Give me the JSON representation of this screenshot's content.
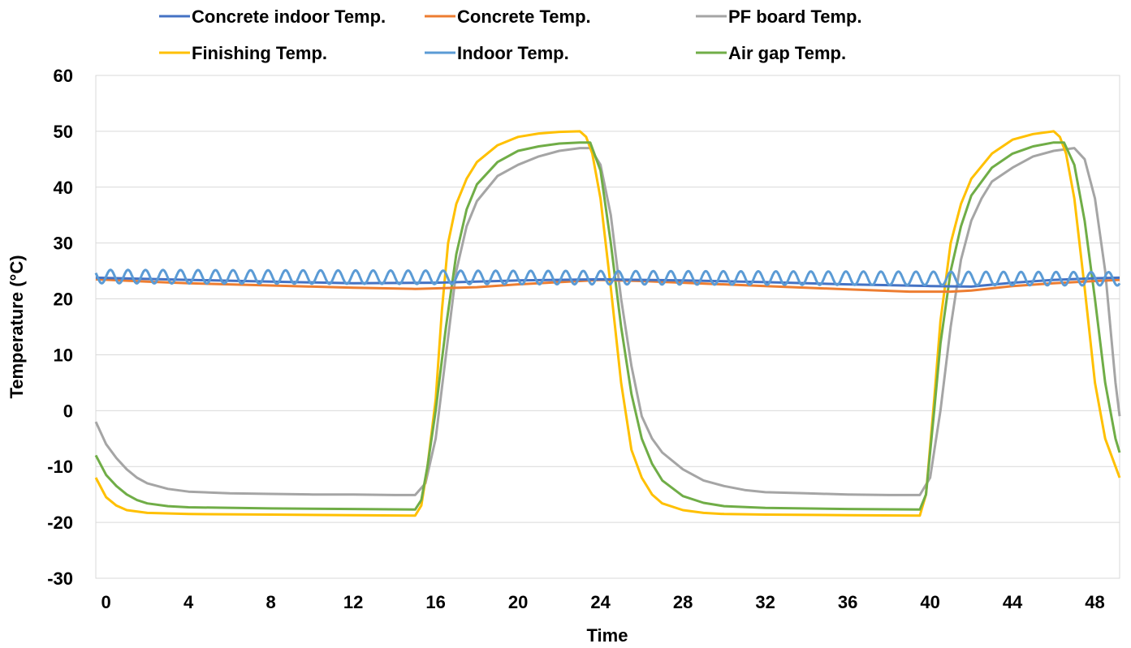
{
  "chart_data": {
    "type": "line",
    "title": "",
    "xlabel": "Time",
    "ylabel": "Temperature (°C)",
    "xlim": [
      -0.5,
      49.2
    ],
    "ylim": [
      -30,
      60
    ],
    "xticks": [
      0,
      4,
      8,
      12,
      16,
      20,
      24,
      28,
      32,
      36,
      40,
      44,
      48
    ],
    "yticks": [
      60,
      50,
      40,
      30,
      20,
      10,
      0,
      -10,
      -20,
      -30
    ],
    "grid": "horizontal",
    "legend_position": "top",
    "series": [
      {
        "name": "Concrete indoor Temp.",
        "color": "#4472C4",
        "points": [
          [
            -0.5,
            23.8
          ],
          [
            4,
            23.4
          ],
          [
            8,
            23.1
          ],
          [
            12,
            22.8
          ],
          [
            16,
            22.9
          ],
          [
            20,
            23.3
          ],
          [
            24,
            23.5
          ],
          [
            28,
            23.3
          ],
          [
            32,
            23.0
          ],
          [
            36,
            22.6
          ],
          [
            40,
            22.3
          ],
          [
            42,
            22.2
          ],
          [
            44,
            22.9
          ],
          [
            46,
            23.4
          ],
          [
            48,
            23.7
          ],
          [
            49.2,
            23.8
          ]
        ]
      },
      {
        "name": "Concrete Temp.",
        "color": "#ED7D31",
        "points": [
          [
            -0.5,
            23.5
          ],
          [
            2,
            23.1
          ],
          [
            4,
            22.8
          ],
          [
            8,
            22.4
          ],
          [
            12,
            22.0
          ],
          [
            15,
            21.8
          ],
          [
            18,
            22.1
          ],
          [
            20,
            22.6
          ],
          [
            24,
            23.4
          ],
          [
            26,
            23.2
          ],
          [
            28,
            22.9
          ],
          [
            32,
            22.3
          ],
          [
            36,
            21.7
          ],
          [
            39,
            21.3
          ],
          [
            41,
            21.3
          ],
          [
            42,
            21.5
          ],
          [
            44,
            22.3
          ],
          [
            46,
            22.8
          ],
          [
            48,
            23.2
          ],
          [
            49.2,
            23.4
          ]
        ]
      },
      {
        "name": "PF board Temp.",
        "color": "#A5A5A5",
        "points": [
          [
            -0.5,
            -2
          ],
          [
            0,
            -6
          ],
          [
            0.5,
            -8.5
          ],
          [
            1,
            -10.5
          ],
          [
            1.5,
            -12
          ],
          [
            2,
            -13
          ],
          [
            3,
            -14
          ],
          [
            4,
            -14.5
          ],
          [
            6,
            -14.8
          ],
          [
            8,
            -14.9
          ],
          [
            10,
            -15
          ],
          [
            12,
            -15
          ],
          [
            14,
            -15.1
          ],
          [
            15,
            -15.1
          ],
          [
            15.5,
            -13
          ],
          [
            16,
            -5
          ],
          [
            16.5,
            10
          ],
          [
            17,
            25
          ],
          [
            17.5,
            33
          ],
          [
            18,
            37.5
          ],
          [
            19,
            42
          ],
          [
            20,
            44
          ],
          [
            21,
            45.5
          ],
          [
            22,
            46.5
          ],
          [
            23,
            47
          ],
          [
            23.5,
            47
          ],
          [
            24,
            44
          ],
          [
            24.5,
            35
          ],
          [
            25,
            20
          ],
          [
            25.5,
            8
          ],
          [
            26,
            -1
          ],
          [
            26.5,
            -5
          ],
          [
            27,
            -7.5
          ],
          [
            28,
            -10.5
          ],
          [
            29,
            -12.5
          ],
          [
            30,
            -13.5
          ],
          [
            31,
            -14.2
          ],
          [
            32,
            -14.6
          ],
          [
            34,
            -14.8
          ],
          [
            36,
            -15
          ],
          [
            38,
            -15.1
          ],
          [
            39.5,
            -15.1
          ],
          [
            40,
            -12
          ],
          [
            40.5,
            0
          ],
          [
            41,
            15
          ],
          [
            41.5,
            27
          ],
          [
            42,
            34
          ],
          [
            42.5,
            38
          ],
          [
            43,
            41
          ],
          [
            44,
            43.5
          ],
          [
            45,
            45.5
          ],
          [
            46,
            46.5
          ],
          [
            47,
            47
          ],
          [
            47.5,
            45
          ],
          [
            48,
            38
          ],
          [
            48.5,
            25
          ],
          [
            49,
            5
          ],
          [
            49.2,
            -1
          ]
        ]
      },
      {
        "name": "Finishing Temp.",
        "color": "#FFC000",
        "points": [
          [
            -0.5,
            -12
          ],
          [
            0,
            -15.5
          ],
          [
            0.5,
            -17
          ],
          [
            1,
            -17.8
          ],
          [
            2,
            -18.3
          ],
          [
            4,
            -18.5
          ],
          [
            8,
            -18.6
          ],
          [
            12,
            -18.7
          ],
          [
            15,
            -18.8
          ],
          [
            15.3,
            -17
          ],
          [
            15.6,
            -10
          ],
          [
            16,
            2
          ],
          [
            16.3,
            18
          ],
          [
            16.6,
            30
          ],
          [
            17,
            37
          ],
          [
            17.5,
            41.5
          ],
          [
            18,
            44.5
          ],
          [
            19,
            47.5
          ],
          [
            20,
            49
          ],
          [
            21,
            49.6
          ],
          [
            22,
            49.9
          ],
          [
            23,
            50
          ],
          [
            23.3,
            49
          ],
          [
            23.6,
            46
          ],
          [
            24,
            38
          ],
          [
            24.5,
            22
          ],
          [
            25,
            5
          ],
          [
            25.5,
            -7
          ],
          [
            26,
            -12
          ],
          [
            26.5,
            -15
          ],
          [
            27,
            -16.6
          ],
          [
            28,
            -17.8
          ],
          [
            29,
            -18.3
          ],
          [
            30,
            -18.5
          ],
          [
            32,
            -18.6
          ],
          [
            36,
            -18.7
          ],
          [
            39.5,
            -18.8
          ],
          [
            39.8,
            -15
          ],
          [
            40.2,
            2
          ],
          [
            40.5,
            16
          ],
          [
            41,
            30
          ],
          [
            41.5,
            37
          ],
          [
            42,
            41.5
          ],
          [
            43,
            46
          ],
          [
            44,
            48.5
          ],
          [
            45,
            49.5
          ],
          [
            46,
            50
          ],
          [
            46.3,
            49
          ],
          [
            46.6,
            46
          ],
          [
            47,
            38
          ],
          [
            47.5,
            22
          ],
          [
            48,
            5
          ],
          [
            48.5,
            -5
          ],
          [
            49.2,
            -12
          ]
        ]
      },
      {
        "name": "Indoor Temp.",
        "color": "#5B9BD5",
        "points": [
          [
            -0.5,
            24
          ],
          [
            49.2,
            23.6
          ]
        ],
        "oscillation": {
          "period": 0.85,
          "amplitude": 1.2
        }
      },
      {
        "name": "Air gap Temp.",
        "color": "#70AD47",
        "points": [
          [
            -0.5,
            -8
          ],
          [
            0,
            -11.5
          ],
          [
            0.5,
            -13.5
          ],
          [
            1,
            -15
          ],
          [
            1.5,
            -16
          ],
          [
            2,
            -16.6
          ],
          [
            3,
            -17.1
          ],
          [
            4,
            -17.3
          ],
          [
            8,
            -17.5
          ],
          [
            12,
            -17.6
          ],
          [
            15,
            -17.7
          ],
          [
            15.3,
            -16
          ],
          [
            15.6,
            -10
          ],
          [
            16,
            0
          ],
          [
            16.5,
            15
          ],
          [
            17,
            28
          ],
          [
            17.5,
            36
          ],
          [
            18,
            40.5
          ],
          [
            19,
            44.5
          ],
          [
            20,
            46.5
          ],
          [
            21,
            47.3
          ],
          [
            22,
            47.8
          ],
          [
            23,
            48
          ],
          [
            23.5,
            48
          ],
          [
            24,
            43
          ],
          [
            24.5,
            30
          ],
          [
            25,
            15
          ],
          [
            25.5,
            3
          ],
          [
            26,
            -5
          ],
          [
            26.5,
            -9.5
          ],
          [
            27,
            -12.5
          ],
          [
            28,
            -15.3
          ],
          [
            29,
            -16.5
          ],
          [
            30,
            -17.1
          ],
          [
            32,
            -17.4
          ],
          [
            36,
            -17.6
          ],
          [
            39.5,
            -17.7
          ],
          [
            39.8,
            -15
          ],
          [
            40.2,
            0
          ],
          [
            40.5,
            12
          ],
          [
            41,
            25
          ],
          [
            41.5,
            33
          ],
          [
            42,
            38.5
          ],
          [
            43,
            43.5
          ],
          [
            44,
            46
          ],
          [
            45,
            47.3
          ],
          [
            46,
            48
          ],
          [
            46.5,
            48
          ],
          [
            47,
            44
          ],
          [
            47.5,
            34
          ],
          [
            48,
            20
          ],
          [
            48.5,
            5
          ],
          [
            49,
            -5
          ],
          [
            49.2,
            -7.5
          ]
        ]
      }
    ]
  }
}
